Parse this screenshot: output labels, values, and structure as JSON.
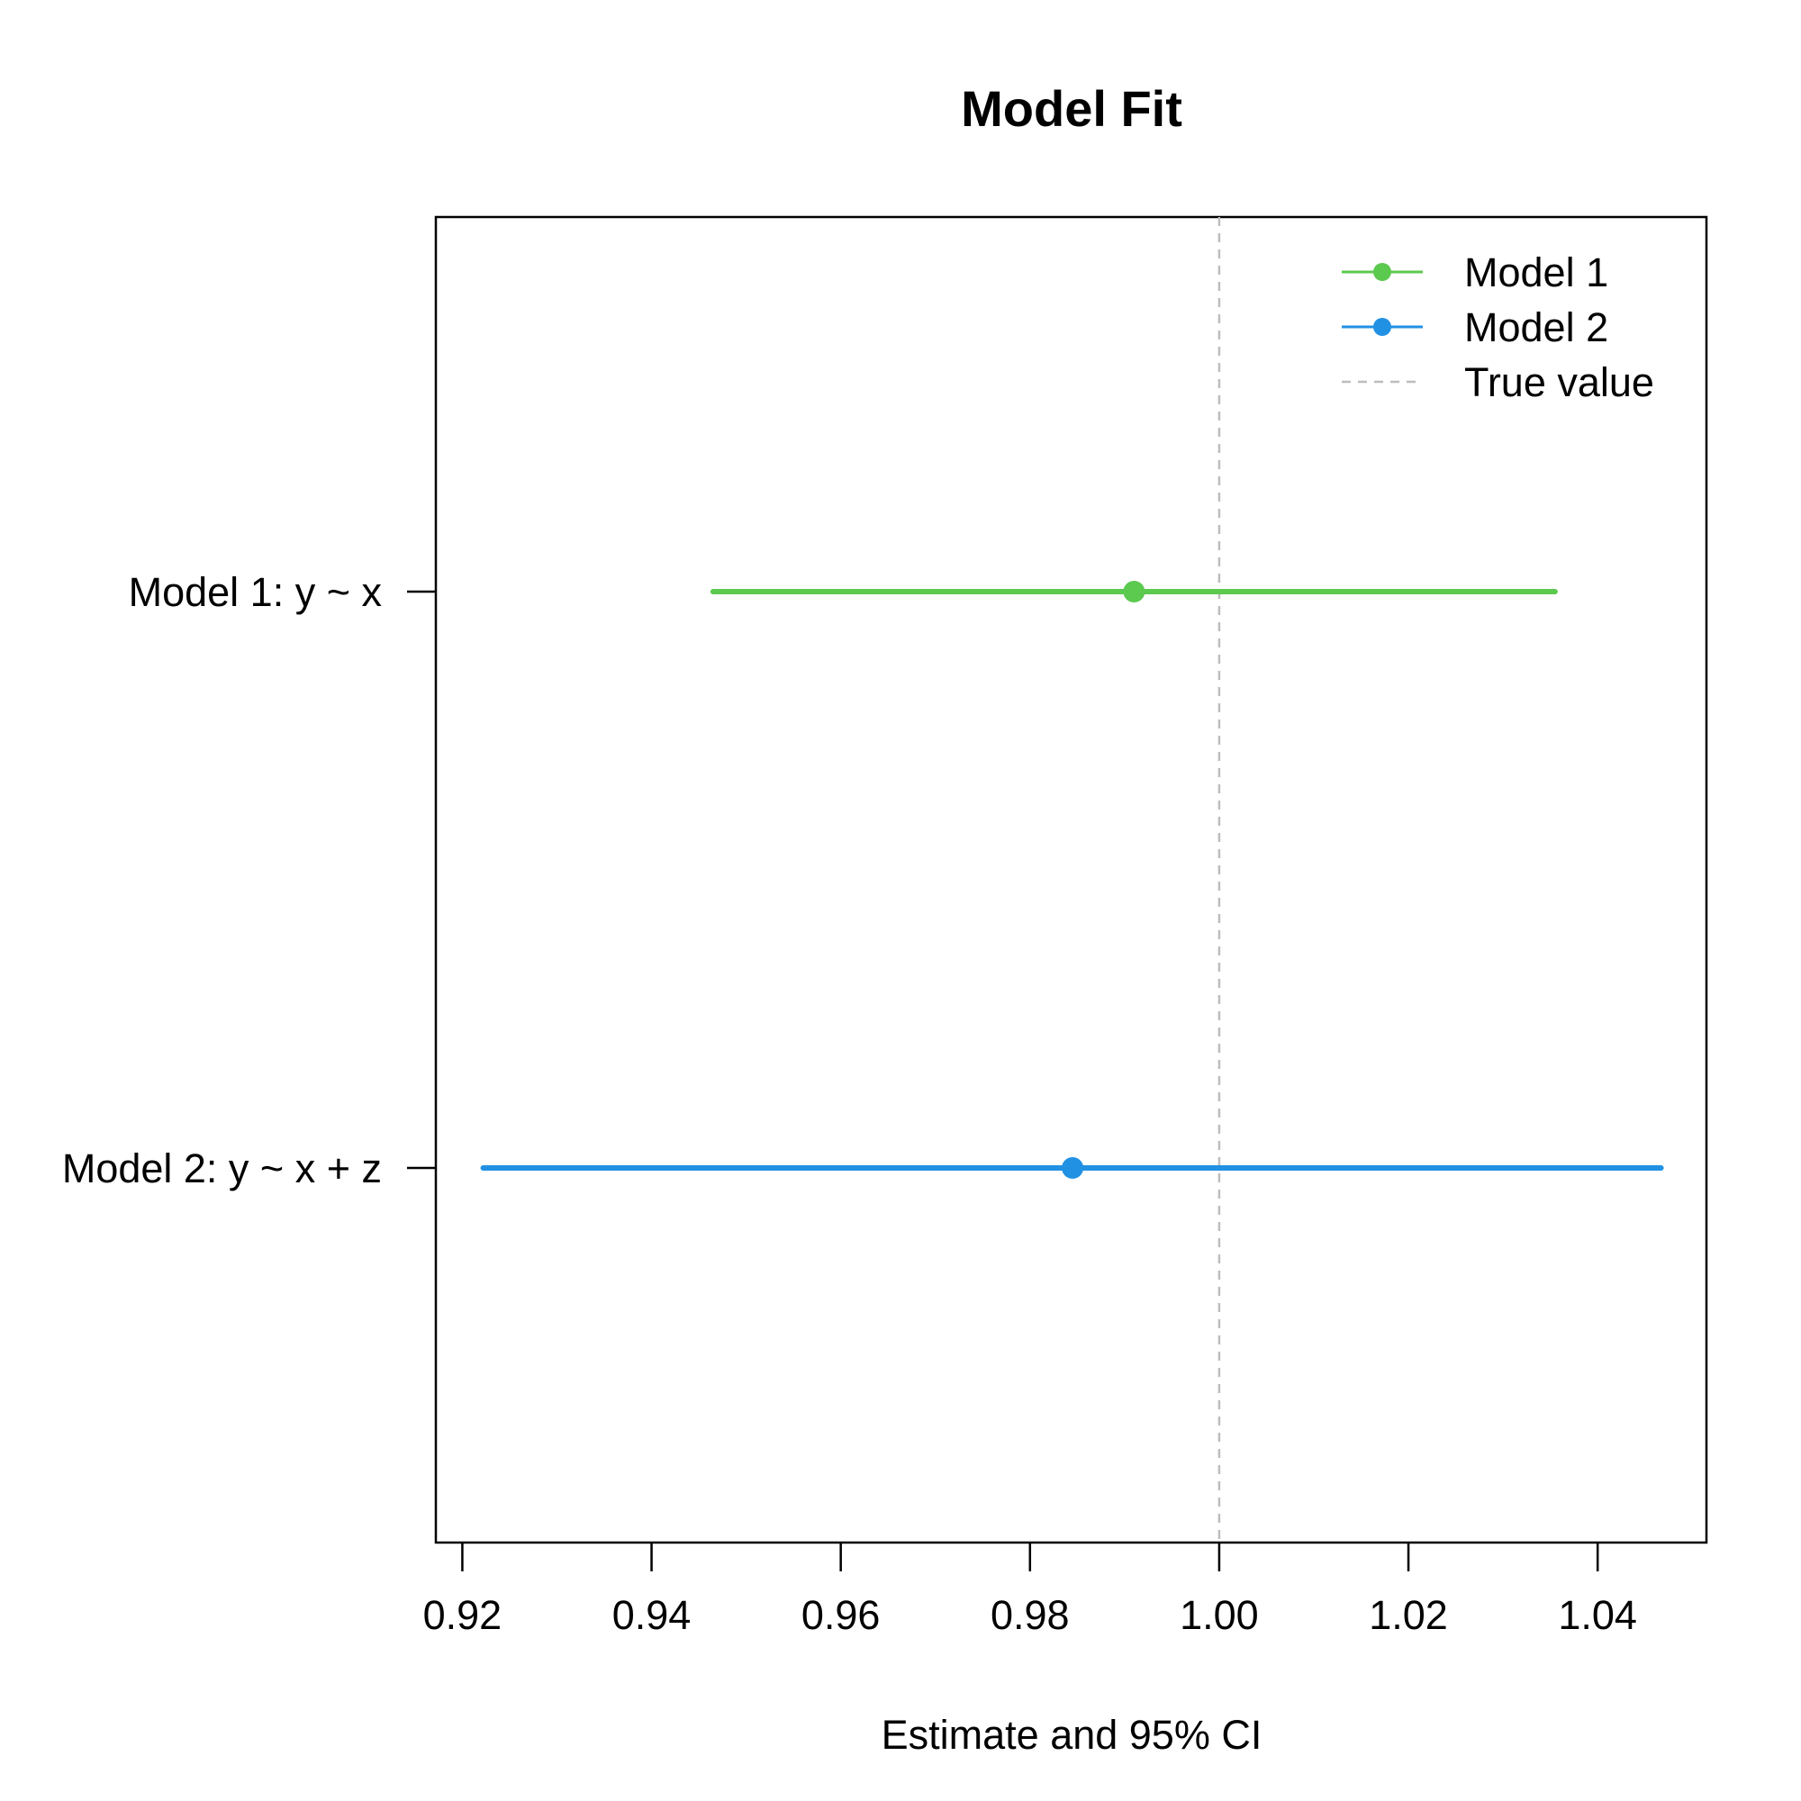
{
  "chart_data": {
    "type": "dot-and-whisker",
    "title": "Model Fit",
    "xlabel": "Estimate and 95% CI",
    "ylabel": "",
    "xlim": [
      0.9172,
      1.0515
    ],
    "x_ticks": [
      0.92,
      0.94,
      0.96,
      0.98,
      1.0,
      1.02,
      1.04
    ],
    "x_tick_labels": [
      "0.92",
      "0.94",
      "0.96",
      "0.98",
      "1.00",
      "1.02",
      "1.04"
    ],
    "series": [
      {
        "name": "Model 1",
        "label": "Model 1: y ~ x",
        "estimate": 0.991,
        "ci_low": 0.9465,
        "ci_high": 1.0355,
        "color": "#5cc94f"
      },
      {
        "name": "Model 2",
        "label": "Model 2: y ~ x + z",
        "estimate": 0.9845,
        "ci_low": 0.9222,
        "ci_high": 1.0467,
        "color": "#2191e3"
      }
    ],
    "reference_line": {
      "name": "True value",
      "x": 1.0,
      "color": "#bdbdbd",
      "style": "dashed"
    },
    "legend": {
      "position": "top-right",
      "entries": [
        {
          "label": "Model 1",
          "color": "#5cc94f",
          "style": "line-point"
        },
        {
          "label": "Model 2",
          "color": "#2191e3",
          "style": "line-point"
        },
        {
          "label": "True value",
          "color": "#bdbdbd",
          "style": "dashed"
        }
      ]
    },
    "grid": false
  }
}
